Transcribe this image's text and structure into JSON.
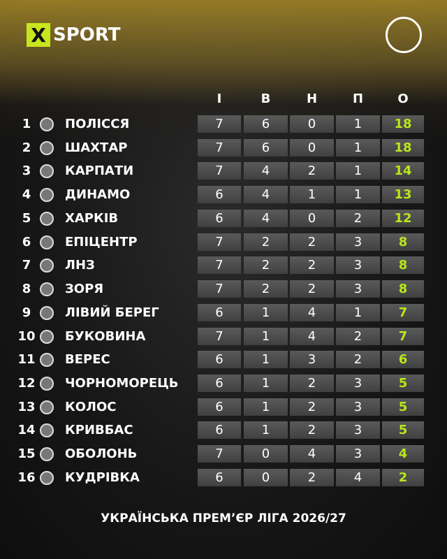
{
  "brand": {
    "mark": "X",
    "name": "SPORT"
  },
  "table": {
    "columns": [
      "І",
      "В",
      "Н",
      "П",
      "О"
    ],
    "rows": [
      [
        "1",
        "ПОЛІССЯ",
        "7",
        "6",
        "0",
        "1",
        "18"
      ],
      [
        "2",
        "ШАХТАР",
        "7",
        "6",
        "0",
        "1",
        "18"
      ],
      [
        "3",
        "КАРПАТИ",
        "7",
        "4",
        "2",
        "1",
        "14"
      ],
      [
        "4",
        "ДИНАМО",
        "6",
        "4",
        "1",
        "1",
        "13"
      ],
      [
        "5",
        "ХАРКІВ",
        "6",
        "4",
        "0",
        "2",
        "12"
      ],
      [
        "6",
        "ЕПІЦЕНТР",
        "7",
        "2",
        "2",
        "3",
        "8"
      ],
      [
        "7",
        "ЛНЗ",
        "7",
        "2",
        "2",
        "3",
        "8"
      ],
      [
        "8",
        "ЗОРЯ",
        "7",
        "2",
        "2",
        "3",
        "8"
      ],
      [
        "9",
        "ЛІВИЙ БЕРЕГ",
        "6",
        "1",
        "4",
        "1",
        "7"
      ],
      [
        "10",
        "БУКОВИНА",
        "7",
        "1",
        "4",
        "2",
        "7"
      ],
      [
        "11",
        "ВЕРЕС",
        "6",
        "1",
        "3",
        "2",
        "6"
      ],
      [
        "12",
        "ЧОРНОМОРЕЦЬ",
        "6",
        "1",
        "2",
        "3",
        "5"
      ],
      [
        "13",
        "КОЛОС",
        "6",
        "1",
        "2",
        "3",
        "5"
      ],
      [
        "14",
        "КРИВБАС",
        "6",
        "1",
        "2",
        "3",
        "5"
      ],
      [
        "15",
        "ОБОЛОНЬ",
        "7",
        "0",
        "4",
        "3",
        "4"
      ],
      [
        "16",
        "КУДРІВКА",
        "6",
        "0",
        "2",
        "4",
        "2"
      ]
    ]
  },
  "footer": {
    "title": "УКРАЇНСЬКА ПРЕМ’ЄР ЛІГА 2026/27"
  }
}
